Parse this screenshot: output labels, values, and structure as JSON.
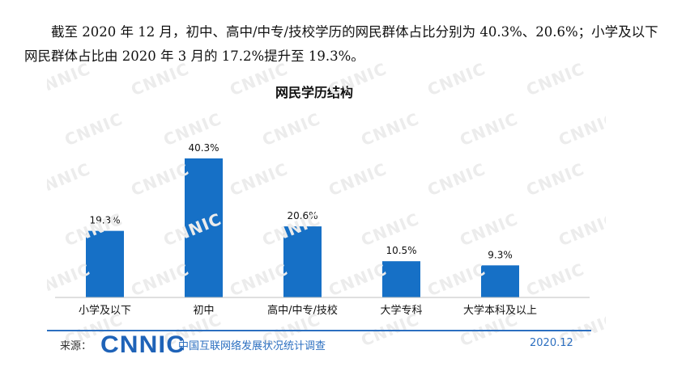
{
  "intro_text": "截至 2020 年 12 月，初中、高中/中专/技校学历的网民群体占比分别为 40.3%、20.6%；小学及以下网民群体占比由 2020 年 3 月的 17.2%提升至 19.3%。",
  "watermark_text": "CNNIC",
  "chart_data": {
    "type": "bar",
    "title": "网民学历结构",
    "categories": [
      "小学及以下",
      "初中",
      "高中/中专/技校",
      "大学专科",
      "大学本科及以上"
    ],
    "values": [
      19.3,
      40.3,
      20.6,
      10.5,
      9.3
    ],
    "value_labels": [
      "19.3%",
      "40.3%",
      "20.6%",
      "10.5%",
      "9.3%"
    ],
    "xlabel": "",
    "ylabel": "",
    "ylim": [
      0,
      40.3
    ],
    "grid": false,
    "legend": "none",
    "bar_color": "#1670c6"
  },
  "footer": {
    "source_label": "来源：",
    "logo_text": "CNNIC",
    "org_name": "中国互联网络发展状况统计调查",
    "date": "2020.12"
  }
}
